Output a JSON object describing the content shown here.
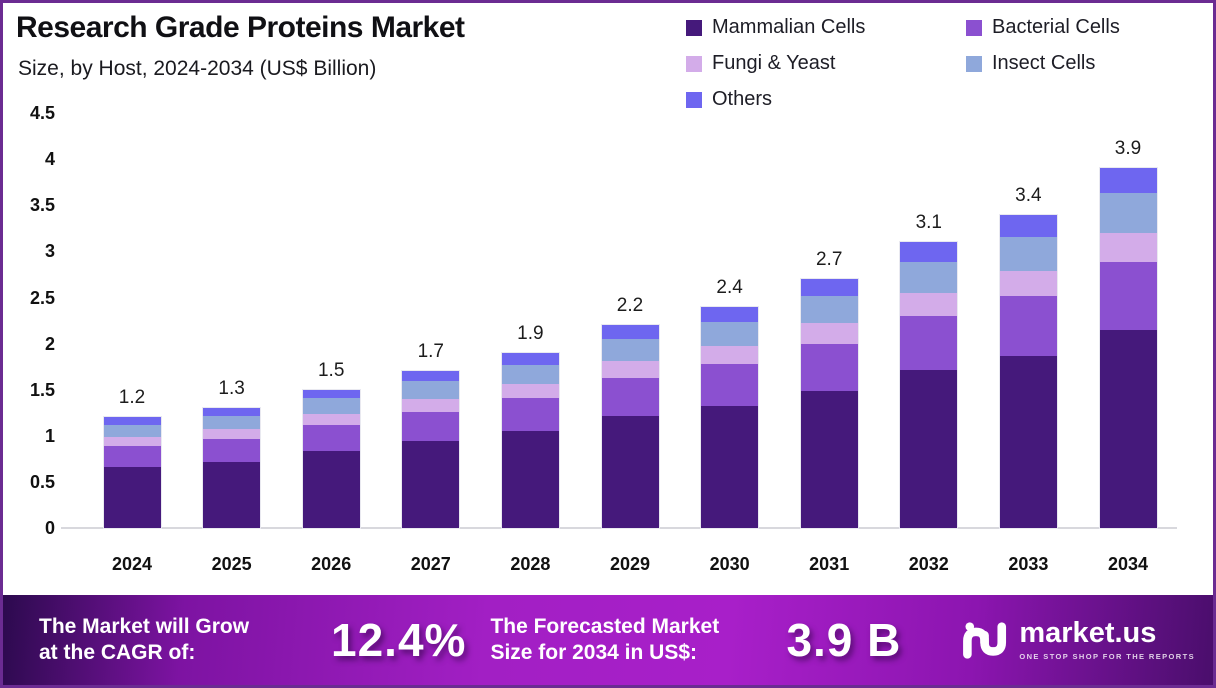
{
  "header": {
    "title": "Research Grade Proteins Market",
    "subtitle": "Size, by Host, 2024-2034 (US$ Billion)"
  },
  "colors": {
    "frame_border": "#6B2B92",
    "banner_gradient_start": "#2C0A4E",
    "banner_gradient_mid": "#A21FC4",
    "banner_gradient_end": "#4A0E6C",
    "axis_line": "#D8D8DD"
  },
  "chart_data": {
    "type": "bar",
    "stacked": true,
    "title": "Research Grade Proteins Market",
    "subtitle": "Size, by Host, 2024-2034 (US$ Billion)",
    "unit": "US$ Billion",
    "grid": false,
    "legend_position": "top-right",
    "categories": [
      "2024",
      "2025",
      "2026",
      "2027",
      "2028",
      "2029",
      "2030",
      "2031",
      "2032",
      "2033",
      "2034"
    ],
    "totals": [
      1.2,
      1.3,
      1.5,
      1.7,
      1.9,
      2.2,
      2.4,
      2.7,
      3.1,
      3.4,
      3.9
    ],
    "total_labels": [
      "1.2",
      "1.3",
      "1.5",
      "1.7",
      "1.9",
      "2.2",
      "2.4",
      "2.7",
      "3.1",
      "3.4",
      "3.9"
    ],
    "series": [
      {
        "name": "Mammalian Cells",
        "color": "#45197B",
        "values": [
          0.66,
          0.72,
          0.83,
          0.94,
          1.05,
          1.21,
          1.32,
          1.49,
          1.71,
          1.87,
          2.15
        ]
      },
      {
        "name": "Bacterial Cells",
        "color": "#8B50D0",
        "values": [
          0.23,
          0.25,
          0.29,
          0.32,
          0.36,
          0.42,
          0.46,
          0.51,
          0.59,
          0.65,
          0.74
        ]
      },
      {
        "name": "Fungi & Yeast",
        "color": "#D3ACE9",
        "values": [
          0.1,
          0.1,
          0.12,
          0.14,
          0.15,
          0.18,
          0.19,
          0.22,
          0.25,
          0.27,
          0.31
        ]
      },
      {
        "name": "Insect Cells",
        "color": "#8FA8DB",
        "values": [
          0.13,
          0.14,
          0.17,
          0.19,
          0.21,
          0.24,
          0.26,
          0.3,
          0.34,
          0.37,
          0.43
        ]
      },
      {
        "name": "Others",
        "color": "#6E66F0",
        "values": [
          0.08,
          0.09,
          0.09,
          0.11,
          0.13,
          0.15,
          0.17,
          0.18,
          0.21,
          0.24,
          0.27
        ]
      }
    ],
    "y_ticks": [
      4.5,
      4,
      3.5,
      3,
      2.5,
      2,
      1.5,
      1,
      0.5,
      0
    ],
    "y_tick_labels": [
      "4.5",
      "4",
      "3.5",
      "3",
      "2.5",
      "2",
      "1.5",
      "1",
      "0.5",
      "0"
    ],
    "ylim": [
      0,
      4.5
    ]
  },
  "banner": {
    "cagr_label": "The Market will Grow\nat the CAGR of:",
    "cagr_value": "12.4%",
    "forecast_label": "The Forecasted Market\nSize for 2034 in US$:",
    "forecast_value": "3.9 B",
    "logo_text": "market.us",
    "logo_tagline": "ONE STOP SHOP FOR THE REPORTS"
  }
}
